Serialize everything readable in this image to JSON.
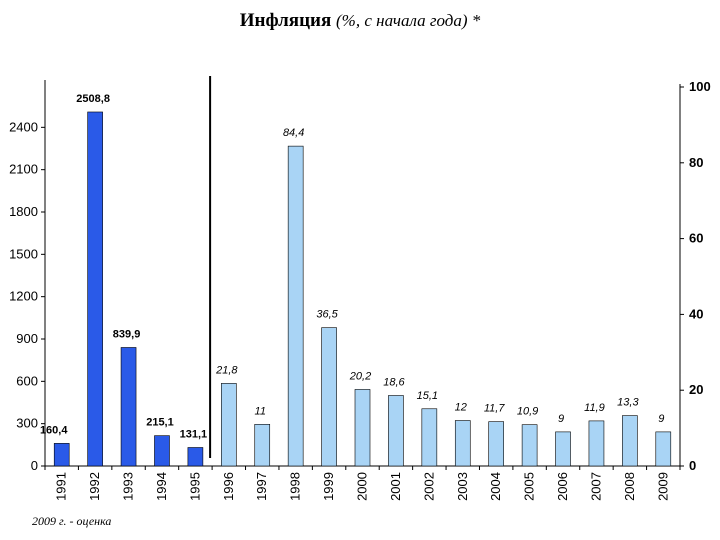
{
  "chart_data": {
    "type": "bar",
    "title": "Инфляция",
    "subtitle": "(%, с начала года) *",
    "footnote": "2009 г. - оценка",
    "categories": [
      "1991",
      "1992",
      "1993",
      "1994",
      "1995",
      "1996",
      "1997",
      "1998",
      "1999",
      "2000",
      "2001",
      "2002",
      "2003",
      "2004",
      "2005",
      "2006",
      "2007",
      "2008",
      "2009"
    ],
    "series": [
      {
        "axis": "left",
        "color": "#2a5ae8",
        "x": [
          "1991",
          "1992",
          "1993",
          "1994",
          "1995"
        ],
        "values": [
          160.4,
          2508.8,
          839.9,
          215.1,
          131.1
        ],
        "labels": [
          "160,4",
          "2508,8",
          "839,9",
          "215,1",
          "131,1"
        ]
      },
      {
        "axis": "right",
        "color": "#a9d4f5",
        "x": [
          "1996",
          "1997",
          "1998",
          "1999",
          "2000",
          "2001",
          "2002",
          "2003",
          "2004",
          "2005",
          "2006",
          "2007",
          "2008",
          "2009"
        ],
        "values": [
          21.8,
          11,
          84.4,
          36.5,
          20.2,
          18.6,
          15.1,
          12,
          11.7,
          10.9,
          9,
          11.9,
          13.3,
          9
        ],
        "labels": [
          "21,8",
          "11",
          "84,4",
          "36,5",
          "20,2",
          "18,6",
          "15,1",
          "12",
          "11,7",
          "10,9",
          "9",
          "11,9",
          "13,3",
          "9"
        ]
      }
    ],
    "y_left": {
      "ylim": [
        0,
        2700
      ],
      "ticks": [
        0,
        300,
        600,
        900,
        1200,
        1500,
        1800,
        2100,
        2400
      ]
    },
    "y_right": {
      "ylim": [
        0,
        100
      ],
      "ticks": [
        0,
        20,
        40,
        60,
        80,
        100
      ]
    },
    "grid": false,
    "legend": "none"
  }
}
